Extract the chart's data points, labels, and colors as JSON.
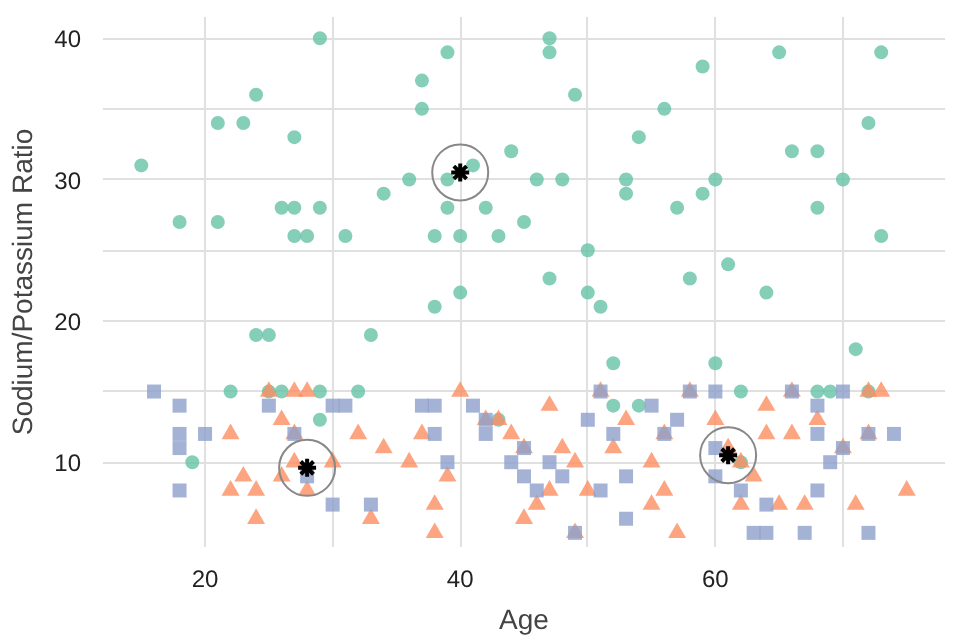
{
  "chart_data": {
    "type": "scatter",
    "xlabel": "Age",
    "ylabel": "Sodium/Potassium Ratio",
    "xlim": [
      12,
      78
    ],
    "ylim": [
      4,
      41.5
    ],
    "xticks": [
      20,
      {
        "value": 30,
        "label": null
      },
      40,
      {
        "value": 50,
        "label": null
      },
      60,
      {
        "value": 70,
        "label": null
      }
    ],
    "yticks": [
      10,
      {
        "value": 15,
        "label": null
      },
      20,
      {
        "value": 25,
        "label": null
      },
      30,
      {
        "value": 35,
        "label": null
      },
      40
    ],
    "grid": true,
    "series": [
      {
        "color": "#66c2a5",
        "marker": "circle",
        "x": [
          15,
          18,
          19,
          21,
          21,
          22,
          23,
          24,
          24,
          25,
          25,
          26,
          26,
          27,
          27,
          27,
          28,
          29,
          29,
          29,
          29,
          31,
          32,
          33,
          34,
          36,
          37,
          37,
          38,
          38,
          39,
          39,
          39,
          40,
          40,
          41,
          42,
          43,
          43,
          44,
          45,
          46,
          47,
          47,
          47,
          48,
          49,
          50,
          50,
          51,
          52,
          52,
          53,
          53,
          54,
          54,
          56,
          57,
          58,
          59,
          59,
          60,
          60,
          61,
          62,
          62,
          64,
          65,
          66,
          68,
          68,
          68,
          69,
          71,
          72,
          72,
          73,
          73,
          70
        ],
        "values": [
          31,
          27,
          10,
          34,
          27,
          15,
          34,
          19,
          36,
          19,
          15,
          28,
          15,
          33,
          28,
          26,
          26,
          28,
          40,
          15,
          13,
          26,
          15,
          19,
          29,
          30,
          35,
          37,
          21,
          26,
          39,
          28,
          30,
          22,
          26,
          31,
          28,
          13,
          26,
          32,
          27,
          30,
          23,
          40,
          39,
          30,
          36,
          25,
          22,
          21,
          17,
          14,
          30,
          29,
          33,
          14,
          35,
          28,
          23,
          29,
          38,
          30,
          17,
          24,
          15,
          10,
          22,
          39,
          32,
          28,
          32,
          15,
          15,
          18,
          15,
          34,
          39,
          26,
          30
        ]
      },
      {
        "color": "#fc8d62",
        "marker": "triangle",
        "x": [
          25,
          27,
          28,
          26,
          22,
          27,
          32,
          37,
          34,
          23,
          24,
          22,
          26,
          27,
          28,
          24,
          30,
          36,
          39,
          33,
          38,
          38,
          42,
          44,
          45,
          47,
          49,
          40,
          43,
          47,
          48,
          52,
          53,
          56,
          55,
          55,
          45,
          50,
          51,
          56,
          57,
          58,
          60,
          61,
          63,
          64,
          65,
          67,
          66,
          68,
          70,
          71,
          72,
          72,
          73,
          75,
          64,
          46,
          49,
          62,
          62,
          66
        ],
        "values": [
          15,
          15,
          15,
          13,
          12,
          12,
          12,
          12,
          11,
          9,
          8,
          8,
          9,
          10,
          8,
          6,
          10,
          10,
          9,
          6,
          5,
          7,
          13,
          12,
          11,
          8,
          10,
          15,
          13,
          14,
          11,
          11,
          13,
          12,
          10,
          7,
          6,
          8,
          15,
          8,
          5,
          15,
          13,
          11,
          9,
          14,
          7,
          7,
          15,
          13,
          11,
          7,
          12,
          15,
          15,
          8,
          12,
          7,
          5,
          10,
          7,
          12
        ]
      },
      {
        "color": "#8da0cb",
        "marker": "square",
        "x": [
          16,
          18,
          18,
          18,
          18,
          20,
          25,
          30,
          31,
          27,
          28,
          30,
          33,
          37,
          38,
          38,
          39,
          41,
          42,
          44,
          45,
          42,
          45,
          46,
          47,
          48,
          49,
          50,
          51,
          52,
          55,
          53,
          56,
          57,
          58,
          60,
          60,
          62,
          63,
          64,
          60,
          66,
          68,
          68,
          68,
          69,
          70,
          70,
          72,
          74,
          72,
          67,
          64,
          51,
          53
        ],
        "values": [
          15,
          14,
          12,
          11,
          8,
          12,
          14,
          14,
          14,
          12,
          9,
          7,
          7,
          14,
          14,
          12,
          10,
          14,
          13,
          10,
          11,
          12,
          9,
          8,
          10,
          9,
          5,
          13,
          15,
          12,
          14,
          9,
          12,
          13,
          15,
          11,
          9,
          8,
          5,
          5,
          15,
          15,
          14,
          8,
          12,
          10,
          15,
          11,
          12,
          12,
          5,
          5,
          7,
          8,
          6
        ]
      },
      {
        "color": "#000000",
        "marker": "cross",
        "x": [
          40,
          28,
          61
        ],
        "values": [
          30.5,
          9.6,
          10.5
        ]
      }
    ]
  }
}
